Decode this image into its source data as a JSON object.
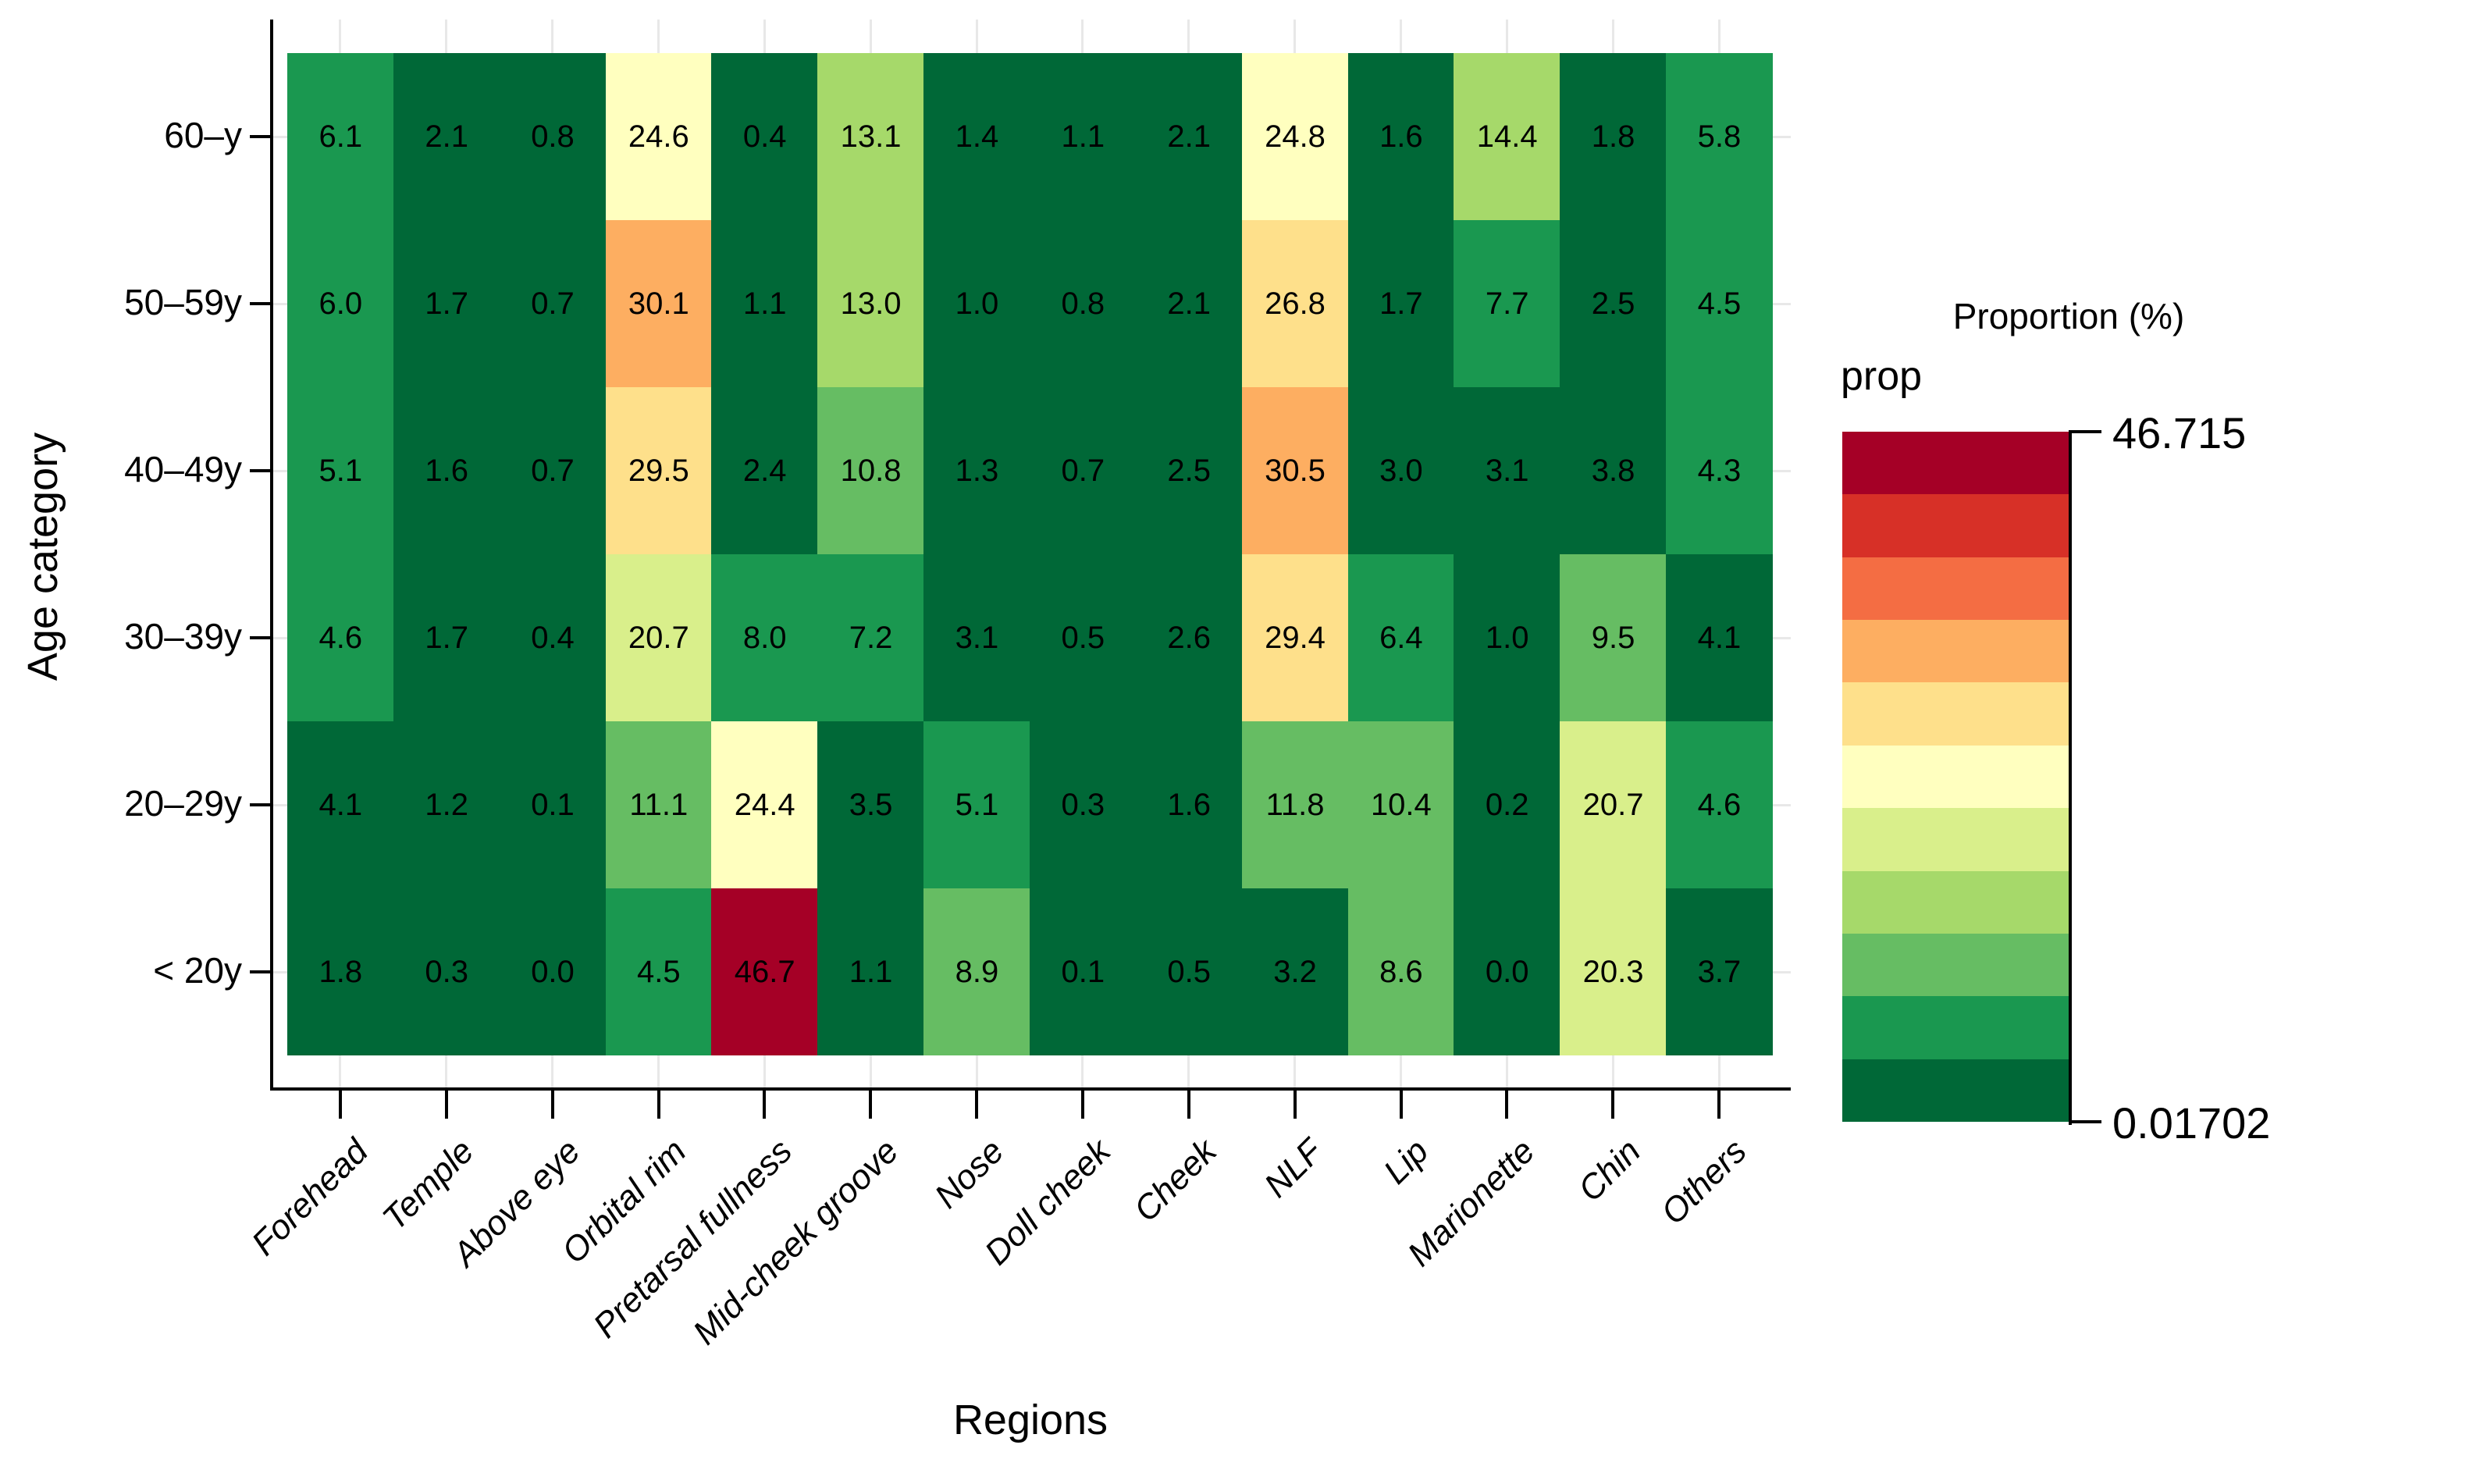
{
  "chart_data": {
    "type": "heatmap",
    "xlabel": "Regions",
    "ylabel": "Age category",
    "categories_x": [
      "Forehead",
      "Temple",
      "Above eye",
      "Orbital rim",
      "Pretarsal fullness",
      "Mid-cheek groove",
      "Nose",
      "Doll cheek",
      "Cheek",
      "NLF",
      "Lip",
      "Marionette",
      "Chin",
      "Others"
    ],
    "categories_y": [
      "60–y",
      "50–59y",
      "40–49y",
      "30–39y",
      "20–29y",
      "< 20y"
    ],
    "values": [
      [
        6.1,
        2.1,
        0.8,
        24.6,
        0.4,
        13.1,
        1.4,
        1.1,
        2.1,
        24.8,
        1.6,
        14.4,
        1.8,
        5.8
      ],
      [
        6.0,
        1.7,
        0.7,
        30.1,
        1.1,
        13.0,
        1.0,
        0.8,
        2.1,
        26.8,
        1.7,
        7.7,
        2.5,
        4.5
      ],
      [
        5.1,
        1.6,
        0.7,
        29.5,
        2.4,
        10.8,
        1.3,
        0.7,
        2.5,
        30.5,
        3.0,
        3.1,
        3.8,
        4.3
      ],
      [
        4.6,
        1.7,
        0.4,
        20.7,
        8.0,
        7.2,
        3.1,
        0.5,
        2.6,
        29.4,
        6.4,
        1.0,
        9.5,
        4.1
      ],
      [
        4.1,
        1.2,
        0.1,
        11.1,
        24.4,
        3.5,
        5.1,
        0.3,
        1.6,
        11.8,
        10.4,
        0.2,
        20.7,
        4.6
      ],
      [
        1.8,
        0.3,
        0.0,
        4.5,
        46.7,
        1.1,
        8.9,
        0.1,
        0.5,
        3.2,
        8.6,
        0.0,
        20.3,
        3.7
      ]
    ],
    "value_format_decimals": 1,
    "grid": true,
    "legend": {
      "position": "right",
      "title": "Proportion (%)",
      "fill_label": "prop",
      "max_label": "46.715",
      "min_label": "0.01702",
      "domain": [
        0.01702,
        46.715
      ],
      "palette_low_to_high": [
        "#006837",
        "#1A9850",
        "#66BD63",
        "#A6D96A",
        "#D9EF8B",
        "#FFFFBF",
        "#FEE08B",
        "#FDAE61",
        "#F46D43",
        "#D73027",
        "#A50026"
      ]
    },
    "colors": {
      "axis": "#000000",
      "gridline": "#e8e8e8",
      "background": "#ffffff",
      "text": "#000000"
    }
  }
}
